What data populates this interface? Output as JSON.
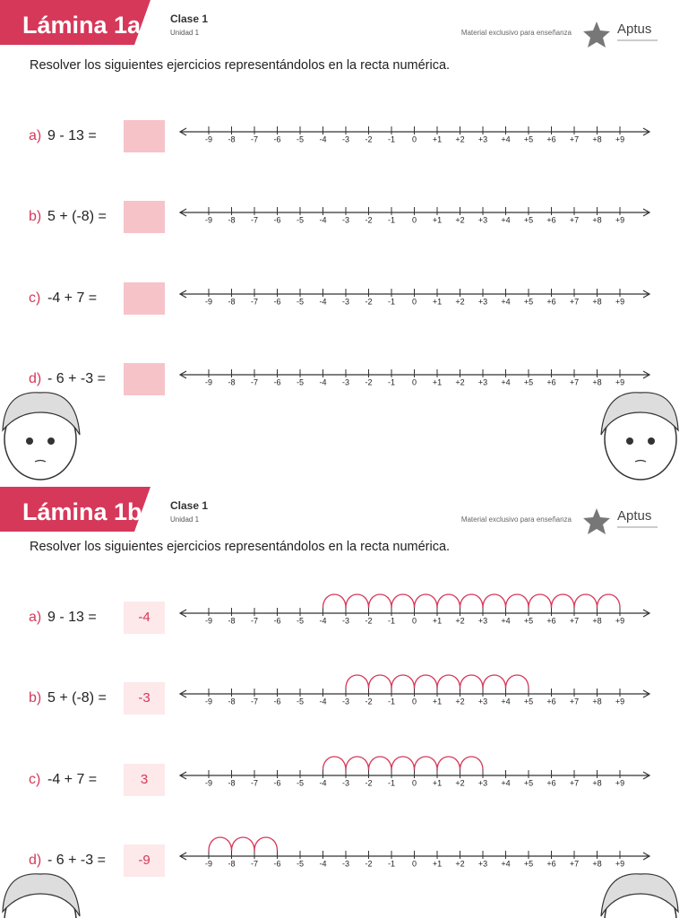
{
  "sheets": [
    {
      "title": "Lámina 1a",
      "clase": "Clase 1",
      "unidad": "Unidad 1",
      "material": "Material exclusivo para enseñanza",
      "brand": "Aptus",
      "instruction": "Resolver los siguientes ejercicios representándolos en la recta numérica.",
      "exercises": [
        {
          "letter": "a)",
          "expression": "9 - 13 ="
        },
        {
          "letter": "b)",
          "expression": "5 + (-8) ="
        },
        {
          "letter": "c)",
          "expression": "-4 + 7 ="
        },
        {
          "letter": "d)",
          "expression": "- 6 + -3 ="
        }
      ]
    },
    {
      "title": "Lámina 1b",
      "clase": "Clase 1",
      "unidad": "Unidad 1",
      "material": "Material exclusivo para enseñanza",
      "brand": "Aptus",
      "instruction": "Resolver los siguientes ejercicios representándolos en la recta numérica.",
      "exercises": [
        {
          "letter": "a)",
          "expression": "9 - 13 =",
          "answer": "-4"
        },
        {
          "letter": "b)",
          "expression": "5 + (-8) =",
          "answer": "-3"
        },
        {
          "letter": "c)",
          "expression": "-4 + 7 =",
          "answer": "3"
        },
        {
          "letter": "d)",
          "expression": "- 6 + -3 =",
          "answer": "-9"
        }
      ]
    }
  ],
  "number_line_labels": [
    "-9",
    "-8",
    "-7",
    "-6",
    "-5",
    "-4",
    "-3",
    "-2",
    "-1",
    "0",
    "+1",
    "+2",
    "+3",
    "+4",
    "+5",
    "+6",
    "+7",
    "+8",
    "+9"
  ]
}
